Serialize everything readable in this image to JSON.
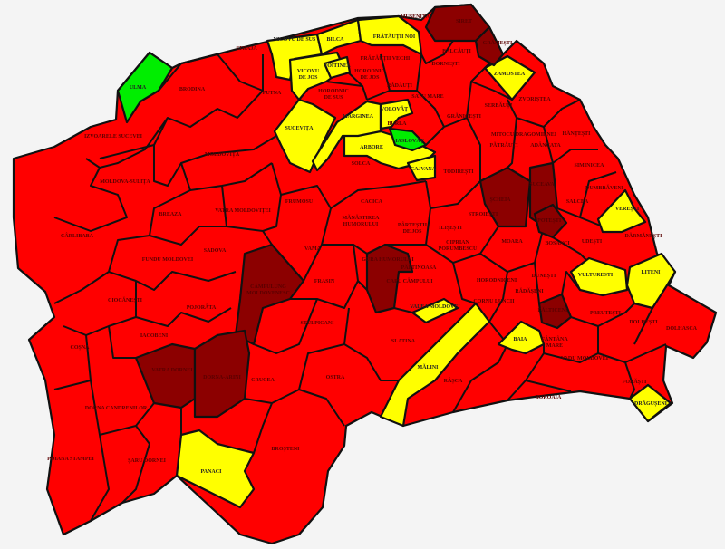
{
  "map": {
    "colors": {
      "red": "#ff0000",
      "dark_red": "#8c0000",
      "yellow": "#ffff00",
      "green": "#00ee00",
      "border": "#111111",
      "background": "#f4f4f4"
    },
    "communes": [
      {
        "name": "ULMA",
        "status": "green"
      },
      {
        "name": "ARBORE",
        "status": "yellow"
      },
      {
        "name": "VICOVU DE SUS",
        "status": "yellow"
      },
      {
        "name": "BILCA",
        "status": "yellow"
      },
      {
        "name": "FRĂTĂUȚII NOI",
        "status": "yellow"
      },
      {
        "name": "VICOVU DE JOS",
        "status": "yellow"
      },
      {
        "name": "VOITINEL",
        "status": "yellow"
      },
      {
        "name": "SUCEVIȚA",
        "status": "yellow"
      },
      {
        "name": "MARGINEA",
        "status": "yellow"
      },
      {
        "name": "VOLOVĂȚ",
        "status": "yellow"
      },
      {
        "name": "IASLOVĂȚ",
        "status": "green"
      },
      {
        "name": "CAJVANA",
        "status": "yellow"
      },
      {
        "name": "ZAMOSTEA",
        "status": "yellow"
      },
      {
        "name": "VEREȘTI",
        "status": "yellow"
      },
      {
        "name": "VULTURESTI",
        "status": "yellow"
      },
      {
        "name": "LITENI",
        "status": "yellow"
      },
      {
        "name": "VALEA MOLDOVEI",
        "status": "yellow"
      },
      {
        "name": "MĂLINI",
        "status": "yellow"
      },
      {
        "name": "BAIA",
        "status": "yellow"
      },
      {
        "name": "DRĂGUȘENI",
        "status": "yellow"
      },
      {
        "name": "PANACI",
        "status": "yellow"
      },
      {
        "name": "SIRET",
        "status": "dark_red"
      },
      {
        "name": "GRĂMEȘTI",
        "status": "dark_red"
      },
      {
        "name": "ȘCHEIA",
        "status": "dark_red"
      },
      {
        "name": "SUCEAVA",
        "status": "dark_red"
      },
      {
        "name": "IPOTEȘTI",
        "status": "dark_red"
      },
      {
        "name": "GURA HUMORULUI",
        "status": "dark_red"
      },
      {
        "name": "CÂMPULUNG MOLDOVENESC",
        "status": "dark_red"
      },
      {
        "name": "VATRA DORNEI",
        "status": "dark_red"
      },
      {
        "name": "DORNA-ARINI",
        "status": "dark_red"
      },
      {
        "name": "FĂLTICENI",
        "status": "dark_red"
      },
      {
        "name": "STRAJA",
        "status": "red"
      },
      {
        "name": "BRODINA",
        "status": "red"
      },
      {
        "name": "PUTNA",
        "status": "red"
      },
      {
        "name": "IZVOARELE SUCEVEI",
        "status": "red"
      },
      {
        "name": "MOLDOVIȚA",
        "status": "red"
      },
      {
        "name": "MOLDOVA-SULIȚA",
        "status": "red"
      },
      {
        "name": "BREAZA",
        "status": "red"
      },
      {
        "name": "VATRA MOLDOVIȚEI",
        "status": "red"
      },
      {
        "name": "FRUMOSU",
        "status": "red"
      },
      {
        "name": "CÂRLIBABA",
        "status": "red"
      },
      {
        "name": "FUNDU MOLDOVEI",
        "status": "red"
      },
      {
        "name": "SADOVA",
        "status": "red"
      },
      {
        "name": "VAMA",
        "status": "red"
      },
      {
        "name": "SOLCA",
        "status": "red"
      },
      {
        "name": "CACICA",
        "status": "red"
      },
      {
        "name": "MĂNĂSTIREA HUMORULUI",
        "status": "red"
      },
      {
        "name": "PÂRTEȘTII DE JOS",
        "status": "red"
      },
      {
        "name": "ILIȘEȘTI",
        "status": "red"
      },
      {
        "name": "STROIEȘTI",
        "status": "red"
      },
      {
        "name": "MOARA",
        "status": "red"
      },
      {
        "name": "BOSANCI",
        "status": "red"
      },
      {
        "name": "UDEȘTI",
        "status": "red"
      },
      {
        "name": "SALCEA",
        "status": "red"
      },
      {
        "name": "DUMBRĂVENI",
        "status": "red"
      },
      {
        "name": "SIMINICEA",
        "status": "red"
      },
      {
        "name": "HÂNȚEȘTI",
        "status": "red"
      },
      {
        "name": "ZVORIȘTEA",
        "status": "red"
      },
      {
        "name": "SERBĂUȚI",
        "status": "red"
      },
      {
        "name": "MUȘENIȚA",
        "status": "red"
      },
      {
        "name": "BĂLCĂUȚI",
        "status": "red"
      },
      {
        "name": "DORNEȘTI",
        "status": "red"
      },
      {
        "name": "RĂDĂUȚI",
        "status": "red"
      },
      {
        "name": "FRĂTĂUȚII VECHI",
        "status": "red"
      },
      {
        "name": "HORODNIC DE SUS",
        "status": "red"
      },
      {
        "name": "HORODNIC DE JOS",
        "status": "red"
      },
      {
        "name": "SATU MARE",
        "status": "red"
      },
      {
        "name": "GRĂNICEȘTI",
        "status": "red"
      },
      {
        "name": "BURLA",
        "status": "red"
      },
      {
        "name": "TODIREȘTI",
        "status": "red"
      },
      {
        "name": "PĂTRĂUȚI",
        "status": "red"
      },
      {
        "name": "MITOCU DRAGOMIRNEI",
        "status": "red"
      },
      {
        "name": "ADÂNCATA",
        "status": "red"
      },
      {
        "name": "DĂRMĂNEȘTI",
        "status": "red"
      },
      {
        "name": "PĂLTINOASA",
        "status": "red"
      },
      {
        "name": "CAPU CÂMPULUI",
        "status": "red"
      },
      {
        "name": "CIPRIAN PORUMBESCU",
        "status": "red"
      },
      {
        "name": "HORODNICENI",
        "status": "red"
      },
      {
        "name": "CORNU LUNCII",
        "status": "red"
      },
      {
        "name": "RĂDĂȘENI",
        "status": "red"
      },
      {
        "name": "DUNEȘTI",
        "status": "red"
      },
      {
        "name": "PREUTEȘTI",
        "status": "red"
      },
      {
        "name": "DOLHEȘTI",
        "status": "red"
      },
      {
        "name": "DOLHASCA",
        "status": "red"
      },
      {
        "name": "FÂNTÂNA MARE",
        "status": "red"
      },
      {
        "name": "VADU MOLDOVEI",
        "status": "red"
      },
      {
        "name": "FORĂȘTI",
        "status": "red"
      },
      {
        "name": "BOROAIA",
        "status": "red"
      },
      {
        "name": "RÂȘCA",
        "status": "red"
      },
      {
        "name": "SLATINA",
        "status": "red"
      },
      {
        "name": "STULPICANI",
        "status": "red"
      },
      {
        "name": "FRASIN",
        "status": "red"
      },
      {
        "name": "OSTRA",
        "status": "red"
      },
      {
        "name": "CRUCEA",
        "status": "red"
      },
      {
        "name": "BROȘTENI",
        "status": "red"
      },
      {
        "name": "POJORÂTA",
        "status": "red"
      },
      {
        "name": "IACOBENI",
        "status": "red"
      },
      {
        "name": "CIOCĂNEȘTI",
        "status": "red"
      },
      {
        "name": "COȘNA",
        "status": "red"
      },
      {
        "name": "DORNA CANDRENILOR",
        "status": "red"
      },
      {
        "name": "POIANA STAMPEI",
        "status": "red"
      },
      {
        "name": "ȘARU DORNEI",
        "status": "red"
      }
    ]
  }
}
